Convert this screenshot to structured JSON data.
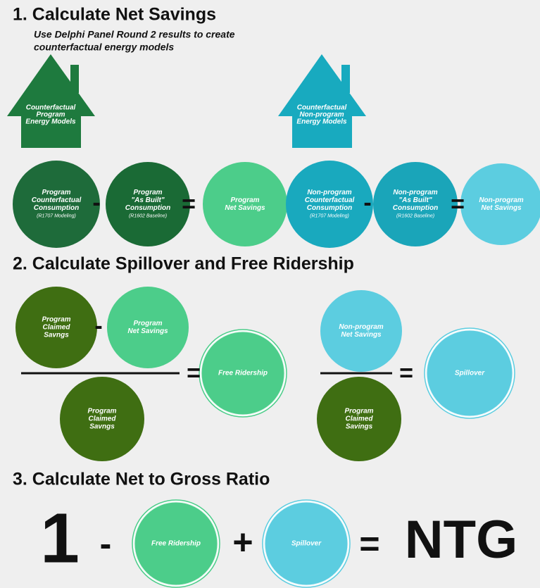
{
  "section1": {
    "title": "1. Calculate Net Savings",
    "subtitle": [
      "Use Delphi Panel Round 2 results to create",
      "counterfactual energy models"
    ],
    "houses": [
      {
        "lines": [
          "Counterfactual",
          "Program",
          "Energy Models"
        ]
      },
      {
        "lines": [
          "Counterfactual",
          "Non-program",
          "Energy Models"
        ]
      }
    ],
    "circles": [
      {
        "lines": [
          "Program",
          "Counterfactual",
          "Consumption"
        ],
        "note": "(R1707 Modeling)"
      },
      {
        "lines": [
          "Program",
          "\"As Built\"",
          "Consumption"
        ],
        "note": "(R1602 Baseline)"
      },
      {
        "lines": [
          "Program",
          "Net Savings"
        ]
      },
      {
        "lines": [
          "Non-program",
          "Counterfactual",
          "Consumption"
        ],
        "note": "(R1707 Modeling)"
      },
      {
        "lines": [
          "Non-program",
          "\"As Built\"",
          "Consumption"
        ],
        "note": "(R1602 Baseline)"
      },
      {
        "lines": [
          "Non-program",
          "Net Savings"
        ]
      }
    ],
    "operators": [
      "-",
      "=",
      "-",
      "="
    ]
  },
  "section2": {
    "title": "2. Calculate Spillover and Free Ridership",
    "circles": [
      {
        "lines": [
          "Program",
          "Claimed",
          "Savngs"
        ]
      },
      {
        "lines": [
          "Program",
          "Net Savings"
        ]
      },
      {
        "lines": [
          "Free Ridership"
        ]
      },
      {
        "lines": [
          "Program",
          "Claimed",
          "Savngs"
        ]
      },
      {
        "lines": [
          "Non-program",
          "Net Savings"
        ]
      },
      {
        "lines": [
          "Spillover"
        ]
      },
      {
        "lines": [
          "Program",
          "Claimed",
          "Savings"
        ]
      }
    ],
    "operators": [
      "-",
      "=",
      "="
    ]
  },
  "section3": {
    "title": "3. Calculate Net to Gross Ratio",
    "one": "1",
    "circles": [
      {
        "lines": [
          "Free Ridership"
        ]
      },
      {
        "lines": [
          "Spillover"
        ]
      }
    ],
    "operators": [
      "-",
      "+",
      "="
    ],
    "result": "NTG"
  }
}
